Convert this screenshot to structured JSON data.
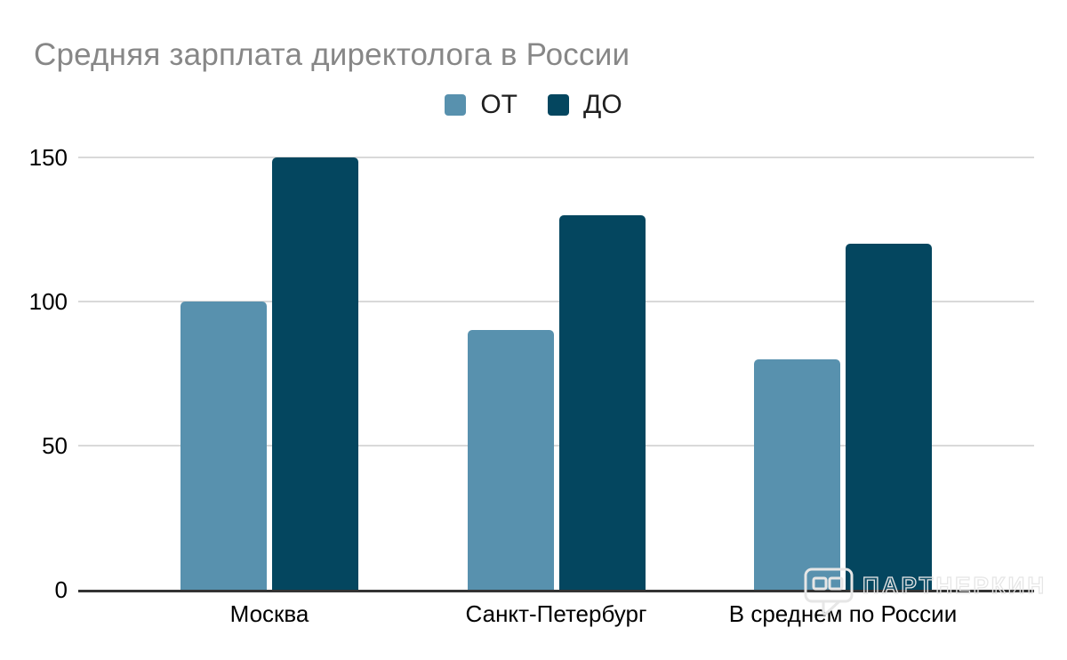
{
  "chart_data": {
    "type": "bar",
    "title": "Средняя зарплата директолога в России",
    "categories": [
      "Москва",
      "Санкт-Петербург",
      "В среднем по России"
    ],
    "series": [
      {
        "name": "ОТ",
        "color": "#5891ae",
        "values": [
          100,
          90,
          80
        ]
      },
      {
        "name": "ДО",
        "color": "#04465f",
        "values": [
          150,
          130,
          120
        ]
      }
    ],
    "xlabel": "",
    "ylabel": "",
    "yticks": [
      0,
      50,
      100,
      150
    ],
    "ylim": [
      0,
      150
    ],
    "grid": true,
    "legend_position": "top-center",
    "colors": {
      "title": "#878787",
      "gridline": "#d9d9d9",
      "axis": "#333333",
      "labels": "#000000"
    }
  },
  "watermark": {
    "text": "ПАРТНЕРКИН",
    "icon": "partnerkin-logo-icon",
    "color": "#e6e6e6"
  }
}
